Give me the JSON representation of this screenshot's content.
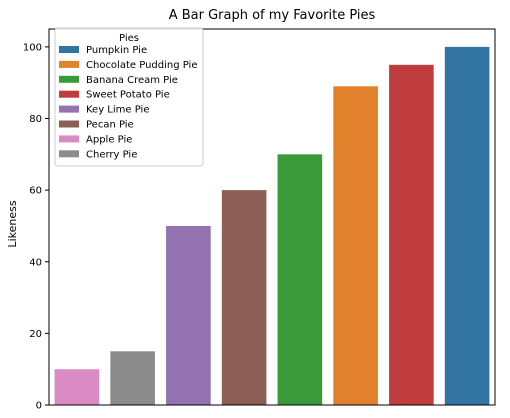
{
  "chart_data": {
    "type": "bar",
    "title": "A Bar Graph of my Favorite Pies",
    "xlabel": "",
    "ylabel": "Likeness",
    "ylim": [
      0,
      105
    ],
    "yticks": [
      0,
      20,
      40,
      60,
      80,
      100
    ],
    "grid": false,
    "categories": [
      "Apple Pie",
      "Cherry Pie",
      "Key Lime Pie",
      "Pecan Pie",
      "Banana Cream Pie",
      "Chocolate Pudding Pie",
      "Sweet Potato Pie",
      "Pumpkin Pie"
    ],
    "values": [
      10,
      15,
      50,
      60,
      70,
      89,
      95,
      100
    ],
    "colors": [
      "#da8bc3",
      "#8c8c8c",
      "#9372b2",
      "#8c5e55",
      "#3a9a3a",
      "#e1812c",
      "#c03d3e",
      "#3274a1"
    ],
    "legend": {
      "title": "Pies",
      "placement": "top-left",
      "entries": [
        {
          "label": "Pumpkin Pie",
          "color": "#3274a1"
        },
        {
          "label": "Chocolate Pudding Pie",
          "color": "#e1812c"
        },
        {
          "label": "Banana Cream Pie",
          "color": "#3a9a3a"
        },
        {
          "label": "Sweet Potato Pie",
          "color": "#c03d3e"
        },
        {
          "label": "Key Lime Pie",
          "color": "#9372b2"
        },
        {
          "label": "Pecan Pie",
          "color": "#8c5e55"
        },
        {
          "label": "Apple Pie",
          "color": "#da8bc3"
        },
        {
          "label": "Cherry Pie",
          "color": "#8c8c8c"
        }
      ]
    }
  }
}
